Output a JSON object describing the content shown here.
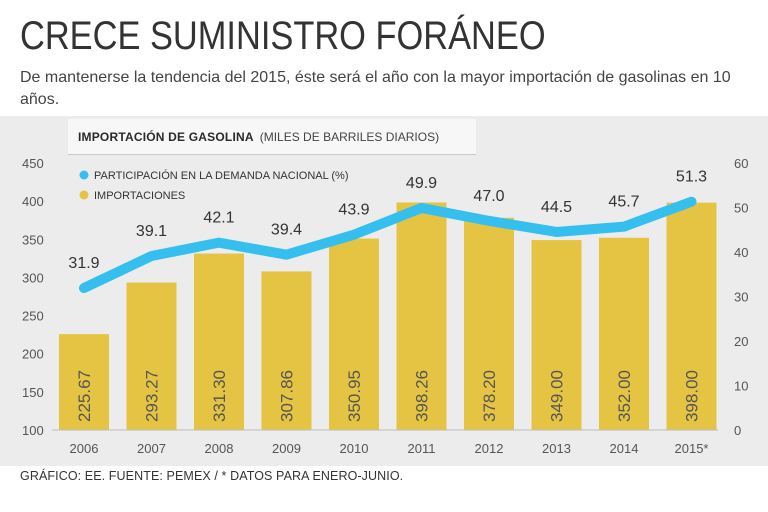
{
  "header": {
    "title": "CRECE SUMINISTRO FORÁNEO",
    "subtitle": "De mantenerse la tendencia del 2015, éste será el año con la mayor importación de gasolinas en 10 años."
  },
  "chart_header": {
    "main": "IMPORTACIÓN DE GASOLINA",
    "units": "(MILES DE BARRILES DIARIOS)"
  },
  "footer": {
    "source": "GRÁFICO: EE. FUENTE: PEMEX / * DATOS PARA ENERO-JUNIO."
  },
  "colors": {
    "bar": "#e6c443",
    "line": "#35bfee",
    "panel": "#ececec"
  },
  "chart_data": {
    "type": "bar",
    "title": "IMPORTACIÓN DE GASOLINA (MILES DE BARRILES DIARIOS)",
    "categories": [
      "2006",
      "2007",
      "2008",
      "2009",
      "2010",
      "2011",
      "2012",
      "2013",
      "2014",
      "2015*"
    ],
    "series": [
      {
        "name": "IMPORTACIONES",
        "type": "bar",
        "axis": "left",
        "values": [
          225.67,
          293.27,
          331.3,
          307.86,
          350.95,
          398.26,
          378.2,
          349.0,
          352.0,
          398.0
        ],
        "labels": [
          "225.67",
          "293.27",
          "331.30",
          "307.86",
          "350.95",
          "398.26",
          "378.20",
          "349.00",
          "352.00",
          "398.00"
        ]
      },
      {
        "name": "PARTICIPACIÓN EN LA DEMANDA NACIONAL (%)",
        "type": "line",
        "axis": "right",
        "values": [
          31.9,
          39.1,
          42.1,
          39.4,
          43.9,
          49.9,
          47.0,
          44.5,
          45.7,
          51.3
        ],
        "labels": [
          "31.9",
          "39.1",
          "42.1",
          "39.4",
          "43.9",
          "49.9",
          "47.0",
          "44.5",
          "45.7",
          "51.3"
        ]
      }
    ],
    "left_axis": {
      "range": [
        100,
        450
      ],
      "ticks": [
        "100",
        "150",
        "200",
        "250",
        "300",
        "350",
        "400",
        "450"
      ]
    },
    "right_axis": {
      "range": [
        0,
        60
      ],
      "ticks": [
        "0",
        "10",
        "20",
        "30",
        "40",
        "50",
        "60"
      ]
    },
    "legend": {
      "placement": "top-left",
      "items": [
        "PARTICIPACIÓN EN LA DEMANDA NACIONAL (%)",
        "IMPORTACIONES"
      ]
    }
  }
}
